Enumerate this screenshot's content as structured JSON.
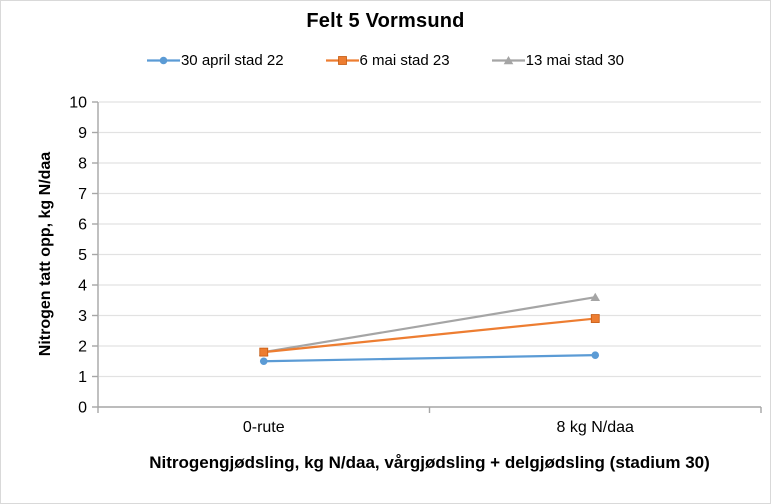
{
  "chart_data": {
    "type": "line",
    "title": "Felt 5 Vormsund",
    "categories": [
      "0-rute",
      "8 kg N/daa"
    ],
    "series": [
      {
        "name": "30 april stad 22",
        "values": [
          1.5,
          1.7
        ],
        "color": "#5B9BD5",
        "marker": "circle"
      },
      {
        "name": "6 mai stad 23",
        "values": [
          1.8,
          2.9
        ],
        "color": "#ED7D31",
        "marker": "square"
      },
      {
        "name": "13 mai stad 30",
        "values": [
          1.8,
          3.6
        ],
        "color": "#A5A5A5",
        "marker": "triangle"
      }
    ],
    "xlabel": "Nitrogengjødsling, kg N/daa, vårgjødsling + delgjødsling (stadium 30)",
    "ylabel": "Nitrogen tatt opp, kg N/daa",
    "ylim": [
      0,
      10
    ],
    "y_ticks": [
      0,
      1,
      2,
      3,
      4,
      5,
      6,
      7,
      8,
      9,
      10
    ],
    "grid": "horizontal",
    "legend_position": "top",
    "colors": {
      "gridline": "#E2E2E2",
      "axis": "#A6A6A6",
      "text": "#000000",
      "chart_border": "#D9D9D9",
      "background": "#FFFFFF"
    }
  }
}
